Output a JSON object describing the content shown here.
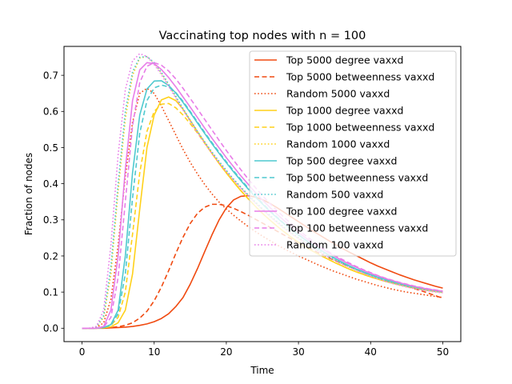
{
  "chart_data": {
    "type": "line",
    "title": "Vaccinating top nodes with n = 100",
    "xlabel": "Time",
    "ylabel": "Fraction of nodes",
    "xlim": [
      -2.5,
      52.5
    ],
    "ylim": [
      -0.037,
      0.78
    ],
    "xticks": [
      0,
      10,
      20,
      30,
      40,
      50
    ],
    "yticks": [
      0.0,
      0.1,
      0.2,
      0.3,
      0.4,
      0.5,
      0.6,
      0.7
    ],
    "x": [
      0,
      1,
      2,
      3,
      4,
      5,
      6,
      7,
      8,
      9,
      10,
      11,
      12,
      13,
      14,
      15,
      16,
      17,
      18,
      19,
      20,
      21,
      22,
      23,
      24,
      25,
      26,
      27,
      28,
      29,
      30,
      31,
      32,
      33,
      34,
      35,
      36,
      37,
      38,
      39,
      40,
      41,
      42,
      43,
      44,
      45,
      46,
      47,
      48,
      49,
      50
    ],
    "grid": false,
    "legend_position": "upper right",
    "series": [
      {
        "name": "Top 5000 degree vaxxd",
        "color": "#f04a10",
        "dash": "solid",
        "values": [
          0.0,
          0.0,
          0.0,
          0.0,
          0.001,
          0.002,
          0.003,
          0.005,
          0.008,
          0.012,
          0.018,
          0.027,
          0.04,
          0.06,
          0.085,
          0.122,
          0.165,
          0.212,
          0.258,
          0.3,
          0.333,
          0.355,
          0.365,
          0.367,
          0.363,
          0.356,
          0.346,
          0.334,
          0.321,
          0.308,
          0.295,
          0.282,
          0.269,
          0.257,
          0.245,
          0.233,
          0.222,
          0.211,
          0.201,
          0.191,
          0.181,
          0.172,
          0.164,
          0.156,
          0.148,
          0.141,
          0.134,
          0.128,
          0.122,
          0.116,
          0.111
        ]
      },
      {
        "name": "Top 5000 betweenness vaxxd",
        "color": "#f04a10",
        "dash": "dashed",
        "values": [
          0.0,
          0.0,
          0.0,
          0.001,
          0.002,
          0.004,
          0.008,
          0.015,
          0.028,
          0.047,
          0.076,
          0.114,
          0.159,
          0.207,
          0.252,
          0.29,
          0.318,
          0.335,
          0.343,
          0.343,
          0.339,
          0.332,
          0.323,
          0.313,
          0.302,
          0.291,
          0.28,
          0.269,
          0.258,
          0.247,
          0.236,
          0.226,
          0.216,
          0.206,
          0.197,
          0.188,
          0.179,
          0.171,
          0.163,
          0.155,
          0.148,
          0.141,
          0.134,
          0.128,
          0.122,
          0.116,
          0.11,
          0.104,
          0.097,
          0.09,
          0.083
        ]
      },
      {
        "name": "Random 5000 vaxxd",
        "color": "#f04a10",
        "dash": "dotted",
        "values": [
          0.0,
          0.0,
          0.002,
          0.015,
          0.08,
          0.23,
          0.42,
          0.57,
          0.65,
          0.664,
          0.65,
          0.615,
          0.575,
          0.535,
          0.495,
          0.459,
          0.427,
          0.398,
          0.372,
          0.349,
          0.33,
          0.313,
          0.297,
          0.282,
          0.268,
          0.255,
          0.243,
          0.231,
          0.22,
          0.21,
          0.2,
          0.191,
          0.182,
          0.173,
          0.165,
          0.157,
          0.15,
          0.143,
          0.136,
          0.13,
          0.124,
          0.118,
          0.113,
          0.108,
          0.104,
          0.1,
          0.097,
          0.094,
          0.091,
          0.088,
          0.085
        ]
      },
      {
        "name": "Top 1000 degree vaxxd",
        "color": "#ffd11a",
        "dash": "solid",
        "values": [
          0.0,
          0.0,
          0.0,
          0.001,
          0.004,
          0.015,
          0.05,
          0.15,
          0.33,
          0.5,
          0.59,
          0.632,
          0.64,
          0.63,
          0.606,
          0.575,
          0.544,
          0.514,
          0.484,
          0.456,
          0.43,
          0.405,
          0.381,
          0.359,
          0.338,
          0.318,
          0.3,
          0.283,
          0.267,
          0.252,
          0.238,
          0.225,
          0.213,
          0.202,
          0.192,
          0.182,
          0.173,
          0.164,
          0.156,
          0.149,
          0.142,
          0.136,
          0.13,
          0.125,
          0.12,
          0.116,
          0.112,
          0.109,
          0.106,
          0.103,
          0.1
        ]
      },
      {
        "name": "Top 1000 betweenness vaxxd",
        "color": "#ffd11a",
        "dash": "dashed",
        "values": [
          0.0,
          0.0,
          0.0,
          0.002,
          0.008,
          0.03,
          0.1,
          0.26,
          0.43,
          0.545,
          0.6,
          0.62,
          0.622,
          0.61,
          0.59,
          0.566,
          0.54,
          0.512,
          0.484,
          0.456,
          0.43,
          0.405,
          0.381,
          0.359,
          0.338,
          0.318,
          0.3,
          0.283,
          0.267,
          0.252,
          0.238,
          0.225,
          0.213,
          0.202,
          0.192,
          0.182,
          0.173,
          0.164,
          0.156,
          0.149,
          0.142,
          0.136,
          0.13,
          0.125,
          0.12,
          0.116,
          0.112,
          0.109,
          0.106,
          0.103,
          0.1
        ]
      },
      {
        "name": "Random 1000 vaxxd",
        "color": "#ffd11a",
        "dash": "dotted",
        "values": [
          0.0,
          0.0,
          0.003,
          0.03,
          0.15,
          0.38,
          0.58,
          0.7,
          0.748,
          0.752,
          0.734,
          0.706,
          0.674,
          0.64,
          0.606,
          0.574,
          0.543,
          0.514,
          0.486,
          0.46,
          0.435,
          0.411,
          0.389,
          0.368,
          0.348,
          0.329,
          0.311,
          0.294,
          0.278,
          0.263,
          0.249,
          0.236,
          0.223,
          0.211,
          0.2,
          0.189,
          0.179,
          0.17,
          0.161,
          0.153,
          0.145,
          0.138,
          0.131,
          0.125,
          0.12,
          0.115,
          0.111,
          0.107,
          0.104,
          0.101,
          0.099
        ]
      },
      {
        "name": "Top 500 degree vaxxd",
        "color": "#4fc9cf",
        "dash": "solid",
        "values": [
          0.0,
          0.0,
          0.0,
          0.002,
          0.01,
          0.05,
          0.2,
          0.43,
          0.59,
          0.662,
          0.684,
          0.685,
          0.672,
          0.651,
          0.625,
          0.597,
          0.568,
          0.539,
          0.511,
          0.484,
          0.458,
          0.433,
          0.409,
          0.386,
          0.364,
          0.344,
          0.324,
          0.306,
          0.289,
          0.273,
          0.258,
          0.244,
          0.23,
          0.217,
          0.205,
          0.194,
          0.183,
          0.173,
          0.164,
          0.156,
          0.148,
          0.141,
          0.135,
          0.129,
          0.124,
          0.119,
          0.115,
          0.111,
          0.108,
          0.105,
          0.102
        ]
      },
      {
        "name": "Top 500 betweenness vaxxd",
        "color": "#4fc9cf",
        "dash": "dashed",
        "values": [
          0.0,
          0.0,
          0.0,
          0.002,
          0.008,
          0.04,
          0.15,
          0.36,
          0.54,
          0.63,
          0.665,
          0.673,
          0.668,
          0.652,
          0.628,
          0.6,
          0.571,
          0.542,
          0.514,
          0.487,
          0.461,
          0.436,
          0.412,
          0.389,
          0.367,
          0.346,
          0.326,
          0.308,
          0.29,
          0.274,
          0.259,
          0.244,
          0.23,
          0.217,
          0.205,
          0.194,
          0.183,
          0.173,
          0.164,
          0.156,
          0.148,
          0.141,
          0.135,
          0.129,
          0.124,
          0.119,
          0.115,
          0.111,
          0.108,
          0.105,
          0.102
        ]
      },
      {
        "name": "Random 500 vaxxd",
        "color": "#4fc9cf",
        "dash": "dotted",
        "values": [
          0.0,
          0.0,
          0.004,
          0.035,
          0.17,
          0.4,
          0.6,
          0.71,
          0.75,
          0.752,
          0.735,
          0.708,
          0.676,
          0.642,
          0.608,
          0.576,
          0.545,
          0.516,
          0.488,
          0.462,
          0.437,
          0.413,
          0.391,
          0.37,
          0.35,
          0.331,
          0.313,
          0.296,
          0.28,
          0.265,
          0.251,
          0.237,
          0.224,
          0.212,
          0.201,
          0.19,
          0.18,
          0.171,
          0.162,
          0.154,
          0.146,
          0.139,
          0.132,
          0.126,
          0.121,
          0.116,
          0.112,
          0.108,
          0.105,
          0.102,
          0.1
        ]
      },
      {
        "name": "Top 100 degree vaxxd",
        "color": "#e87de8",
        "dash": "solid",
        "values": [
          0.0,
          0.0,
          0.0,
          0.005,
          0.05,
          0.2,
          0.44,
          0.63,
          0.715,
          0.735,
          0.732,
          0.716,
          0.694,
          0.668,
          0.64,
          0.612,
          0.583,
          0.554,
          0.526,
          0.499,
          0.472,
          0.447,
          0.422,
          0.399,
          0.376,
          0.355,
          0.335,
          0.316,
          0.298,
          0.281,
          0.265,
          0.25,
          0.236,
          0.223,
          0.211,
          0.199,
          0.188,
          0.178,
          0.169,
          0.16,
          0.152,
          0.145,
          0.138,
          0.132,
          0.126,
          0.121,
          0.116,
          0.112,
          0.108,
          0.105,
          0.102
        ]
      },
      {
        "name": "Top 100 betweenness vaxxd",
        "color": "#e87de8",
        "dash": "dashed",
        "values": [
          0.0,
          0.0,
          0.0,
          0.003,
          0.03,
          0.14,
          0.35,
          0.56,
          0.68,
          0.725,
          0.735,
          0.728,
          0.712,
          0.69,
          0.664,
          0.636,
          0.607,
          0.578,
          0.549,
          0.52,
          0.492,
          0.465,
          0.439,
          0.414,
          0.39,
          0.367,
          0.346,
          0.326,
          0.307,
          0.289,
          0.272,
          0.256,
          0.241,
          0.227,
          0.214,
          0.202,
          0.191,
          0.181,
          0.171,
          0.162,
          0.154,
          0.146,
          0.139,
          0.133,
          0.127,
          0.122,
          0.117,
          0.113,
          0.109,
          0.106,
          0.103
        ]
      },
      {
        "name": "Random 100 vaxxd",
        "color": "#e87de8",
        "dash": "dotted",
        "values": [
          0.0,
          0.0,
          0.005,
          0.05,
          0.23,
          0.48,
          0.66,
          0.74,
          0.76,
          0.752,
          0.73,
          0.702,
          0.67,
          0.637,
          0.604,
          0.572,
          0.541,
          0.512,
          0.484,
          0.458,
          0.433,
          0.41,
          0.388,
          0.367,
          0.347,
          0.328,
          0.31,
          0.293,
          0.277,
          0.262,
          0.248,
          0.235,
          0.222,
          0.21,
          0.199,
          0.188,
          0.178,
          0.169,
          0.16,
          0.152,
          0.144,
          0.137,
          0.13,
          0.124,
          0.119,
          0.114,
          0.11,
          0.106,
          0.103,
          0.1,
          0.098
        ]
      }
    ]
  }
}
